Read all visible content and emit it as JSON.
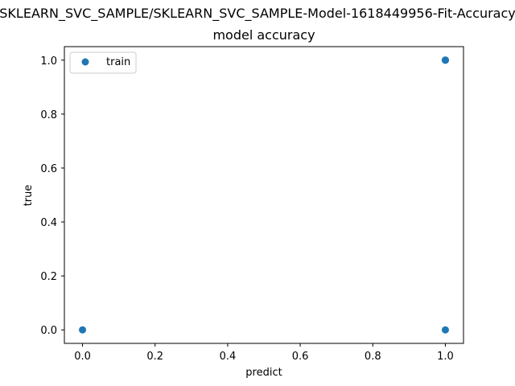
{
  "chart_data": {
    "type": "scatter",
    "suptitle": "SKLEARN_SVC_SAMPLE/SKLEARN_SVC_SAMPLE-Model-1618449956-Fit-Accuracy",
    "title": "model accuracy",
    "xlabel": "predict",
    "ylabel": "true",
    "xlim": [
      -0.05,
      1.05
    ],
    "ylim": [
      -0.05,
      1.05
    ],
    "xticks": [
      0.0,
      0.2,
      0.4,
      0.6,
      0.8,
      1.0
    ],
    "yticks": [
      0.0,
      0.2,
      0.4,
      0.6,
      0.8,
      1.0
    ],
    "xtick_labels": [
      "0.0",
      "0.2",
      "0.4",
      "0.6",
      "0.8",
      "1.0"
    ],
    "ytick_labels": [
      "0.0",
      "0.2",
      "0.4",
      "0.6",
      "0.8",
      "1.0"
    ],
    "grid": false,
    "legend_position": "top-left",
    "series": [
      {
        "name": "train",
        "color": "#1f77b4",
        "points": [
          {
            "x": 0.0,
            "y": 0.0
          },
          {
            "x": 1.0,
            "y": 0.0
          },
          {
            "x": 1.0,
            "y": 1.0
          },
          {
            "x": 1.0,
            "y": 1.0
          },
          {
            "x": 1.0,
            "y": 1.0
          }
        ]
      }
    ]
  }
}
